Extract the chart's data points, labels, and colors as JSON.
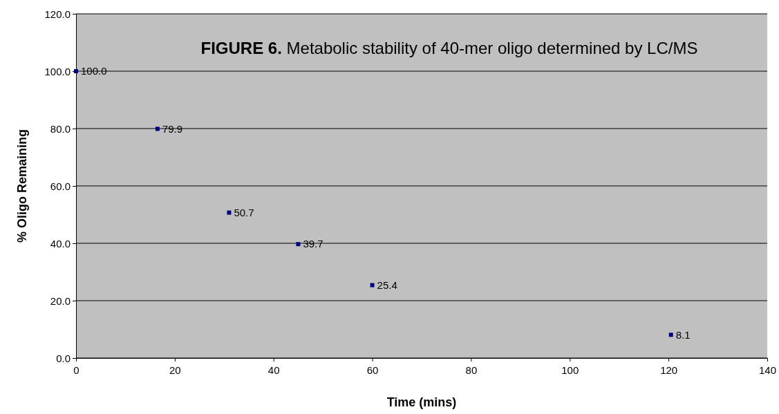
{
  "chart_data": {
    "type": "scatter",
    "title": "FIGURE 6. Metabolic stability of 40-mer oligo determined by LC/MS",
    "xlabel": "Time (mins)",
    "ylabel": "% Oligo Remaining",
    "x": [
      0,
      16.5,
      31,
      45,
      60,
      120.5
    ],
    "series": [
      {
        "color": "#000080",
        "values": [
          100.0,
          79.9,
          50.7,
          39.7,
          25.4,
          8.1
        ],
        "value_labels": [
          "100.0",
          "79.9",
          "50.7",
          "39.7",
          "25.4",
          "8.1"
        ]
      }
    ],
    "xlim": [
      0,
      140
    ],
    "xticks": [
      0,
      20,
      40,
      60,
      80,
      100,
      120,
      140
    ],
    "ylim": [
      0,
      120
    ],
    "yticks": [
      {
        "value": 0,
        "label": "0.0"
      },
      {
        "value": 20,
        "label": "20.0"
      },
      {
        "value": 40,
        "label": "40.0"
      },
      {
        "value": 60,
        "label": "60.0"
      },
      {
        "value": 80,
        "label": "80.0"
      },
      {
        "value": 100,
        "label": "100.0"
      },
      {
        "value": 120,
        "label": "120.0"
      }
    ],
    "grid": "y",
    "marker": "square"
  }
}
